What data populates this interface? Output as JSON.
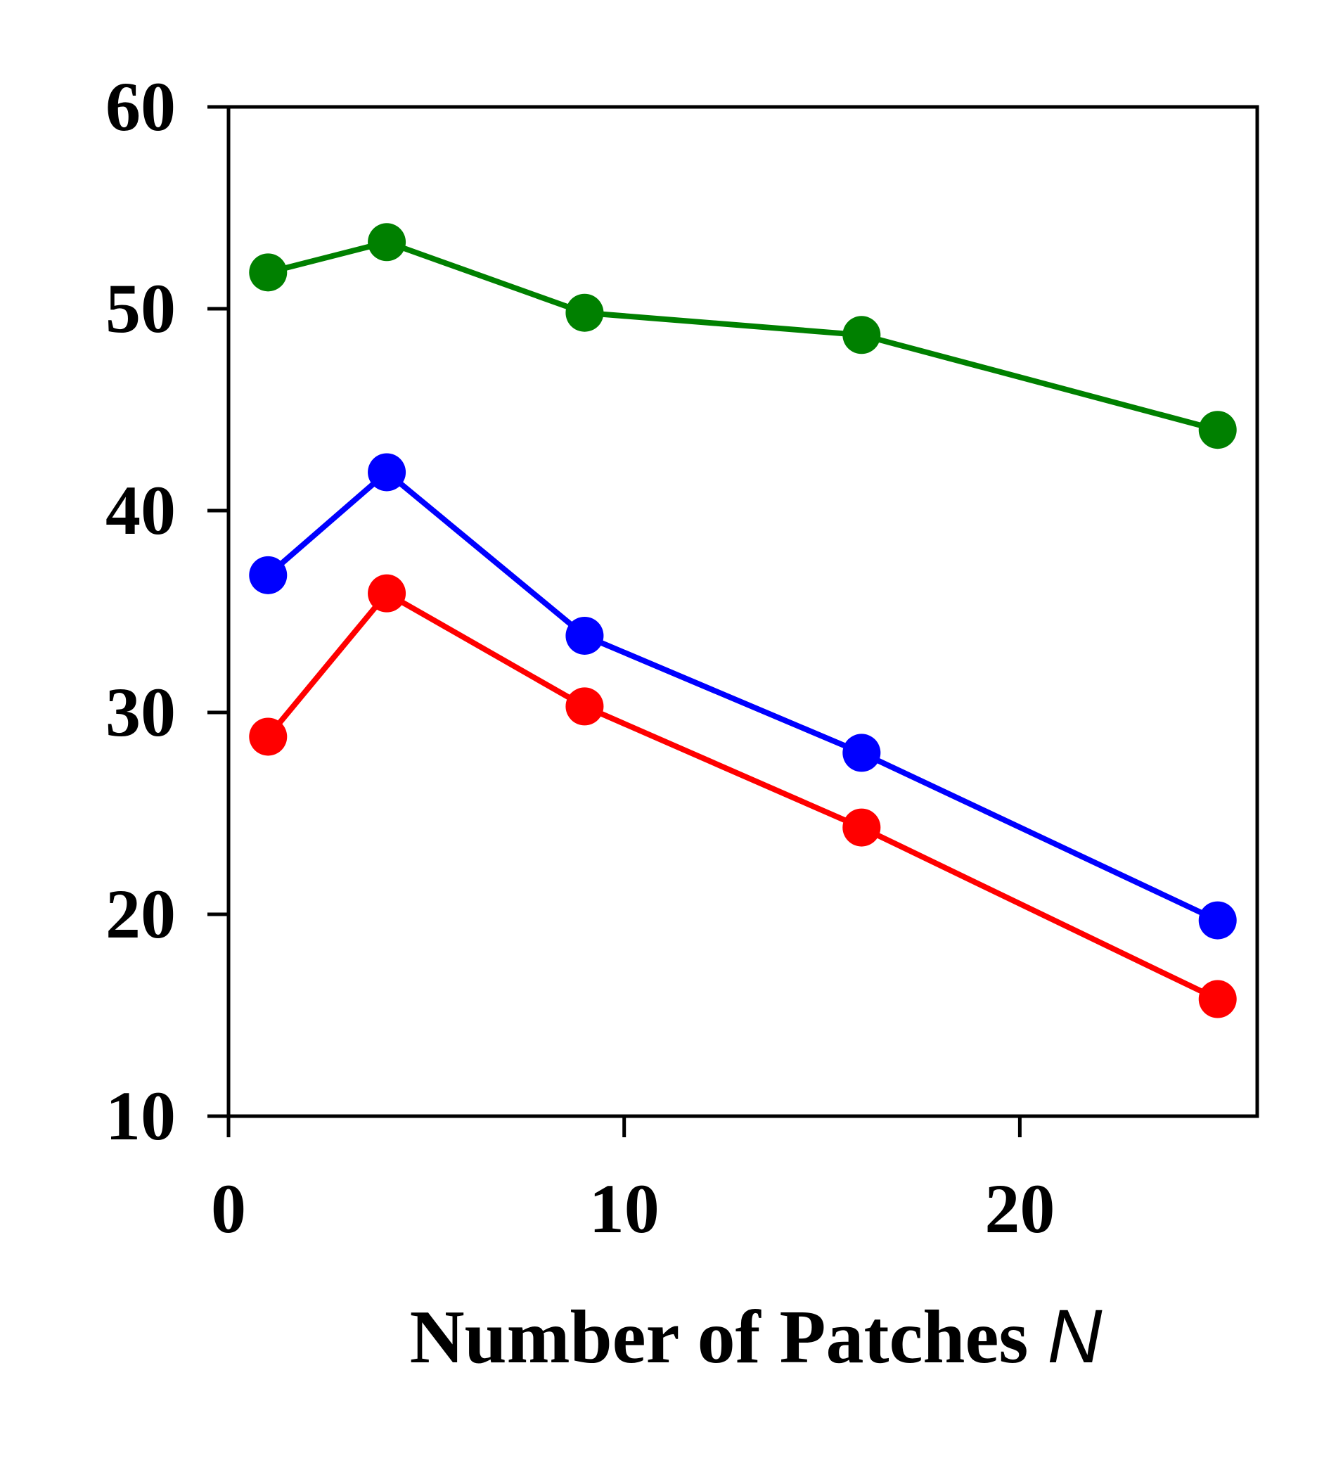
{
  "chart_data": {
    "type": "line",
    "title": "",
    "xlabel": "Number of Patches",
    "xlabel_var": "N",
    "ylabel": "",
    "xlim": [
      0,
      26
    ],
    "ylim": [
      10,
      60
    ],
    "xticks": [
      0,
      10,
      20
    ],
    "yticks": [
      10,
      20,
      30,
      40,
      50,
      60
    ],
    "grid": false,
    "legend": "none",
    "series": [
      {
        "color": "#008000",
        "x": [
          1,
          4,
          9,
          16,
          25
        ],
        "values": [
          51.8,
          53.3,
          49.8,
          48.7,
          44.0
        ]
      },
      {
        "color": "#0000ff",
        "x": [
          1,
          4,
          9,
          16,
          25
        ],
        "values": [
          36.8,
          41.9,
          33.8,
          28.0,
          19.7
        ]
      },
      {
        "color": "#ff0000",
        "x": [
          1,
          4,
          9,
          16,
          25
        ],
        "values": [
          28.8,
          35.9,
          30.3,
          24.3,
          15.8
        ]
      }
    ]
  }
}
